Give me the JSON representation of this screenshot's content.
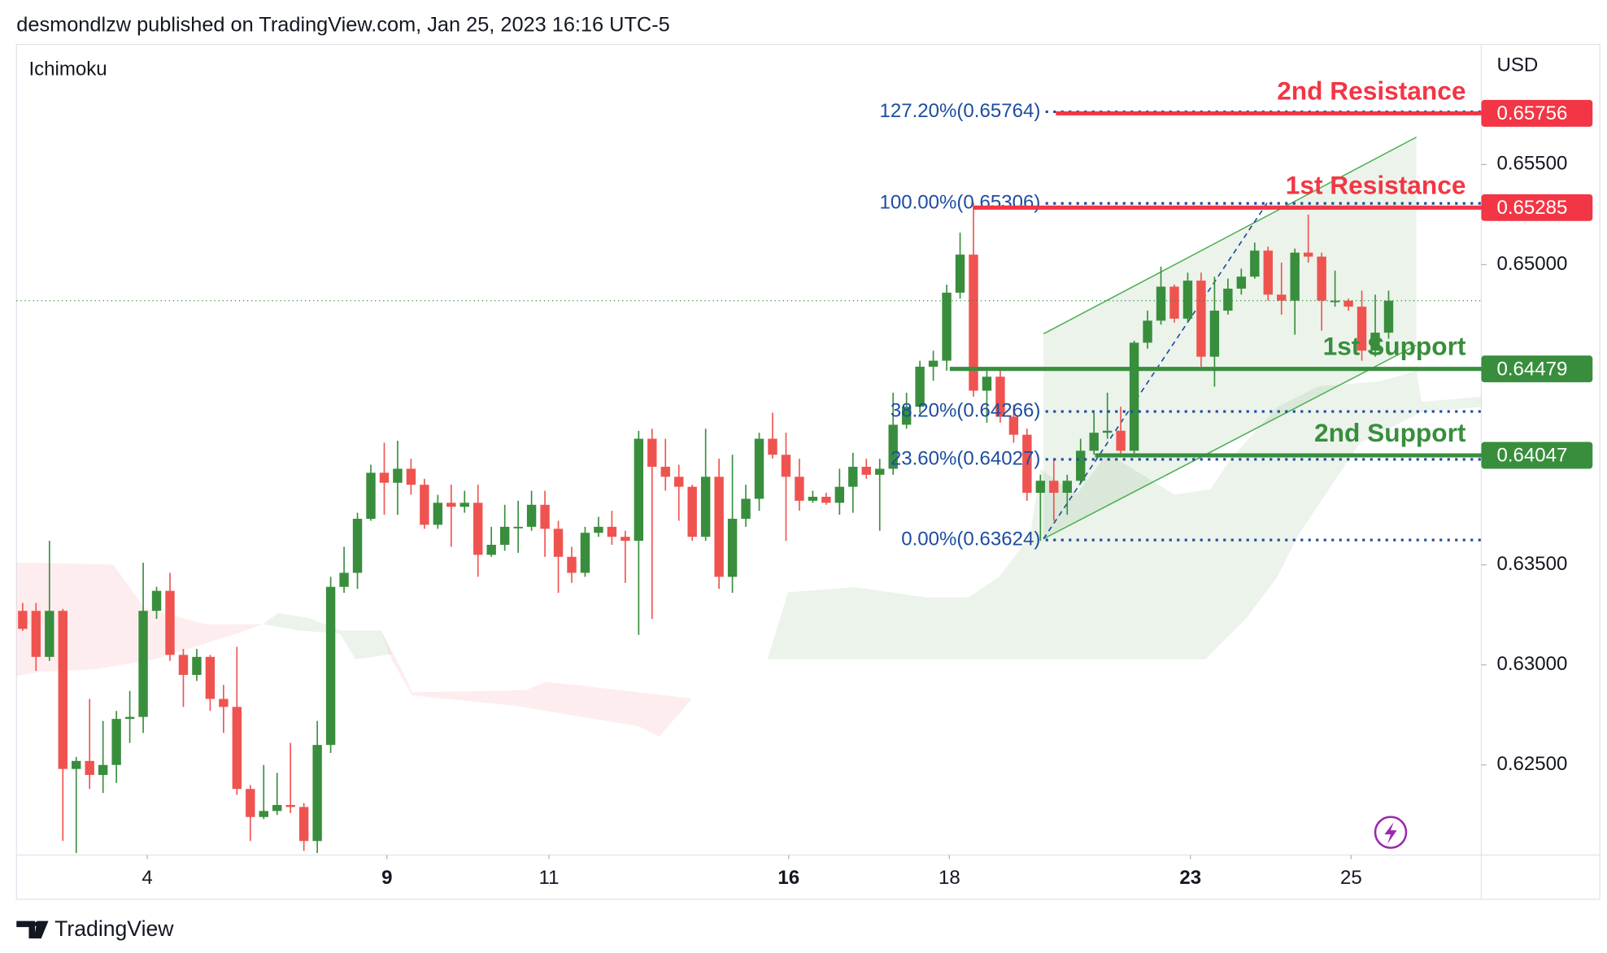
{
  "header": "desmondlzw published on TradingView.com, Jan 25, 2023 16:16 UTC-5",
  "brand": "TradingView",
  "chart_data": {
    "type": "candlestick",
    "indicator": "Ichimoku",
    "y_axis_label": "USD",
    "up_color": "#388e3c",
    "down_color": "#ef5350",
    "ylim": [
      0.6205,
      0.6609
    ],
    "yticks": [
      {
        "value": 0.625,
        "label": "0.62500"
      },
      {
        "value": 0.63,
        "label": "0.63000"
      },
      {
        "value": 0.635,
        "label": "0.63500"
      },
      {
        "value": 0.65,
        "label": "0.65000"
      },
      {
        "value": 0.655,
        "label": "0.65500"
      }
    ],
    "xticks": [
      {
        "value": 9.3,
        "label": "4"
      },
      {
        "value": 27.2,
        "label": "9"
      },
      {
        "value": 39.3,
        "label": "11"
      },
      {
        "value": 57.2,
        "label": "16"
      },
      {
        "value": 69.2,
        "label": "18"
      },
      {
        "value": 87.2,
        "label": "23"
      },
      {
        "value": 99.2,
        "label": "25"
      }
    ],
    "candles": [
      [
        0.6327,
        0.6331,
        0.6317,
        0.6318
      ],
      [
        0.6327,
        0.6331,
        0.6297,
        0.6304
      ],
      [
        0.6304,
        0.6362,
        0.6302,
        0.6327
      ],
      [
        0.6327,
        0.6328,
        0.6212,
        0.6248
      ],
      [
        0.6248,
        0.6254,
        0.6206,
        0.6252
      ],
      [
        0.6252,
        0.6283,
        0.6238,
        0.6245
      ],
      [
        0.6245,
        0.6272,
        0.6236,
        0.625
      ],
      [
        0.625,
        0.6277,
        0.6241,
        0.6273
      ],
      [
        0.6273,
        0.6287,
        0.6261,
        0.6274
      ],
      [
        0.6274,
        0.6351,
        0.6266,
        0.6327
      ],
      [
        0.6327,
        0.6339,
        0.6323,
        0.6337
      ],
      [
        0.6337,
        0.6346,
        0.6302,
        0.6305
      ],
      [
        0.6305,
        0.6308,
        0.6279,
        0.6295
      ],
      [
        0.6295,
        0.6308,
        0.6292,
        0.6304
      ],
      [
        0.6304,
        0.6305,
        0.6277,
        0.6283
      ],
      [
        0.6283,
        0.629,
        0.6266,
        0.6279
      ],
      [
        0.6279,
        0.6309,
        0.6235,
        0.6238
      ],
      [
        0.6238,
        0.624,
        0.6212,
        0.6224
      ],
      [
        0.6224,
        0.625,
        0.6223,
        0.6227
      ],
      [
        0.6227,
        0.6246,
        0.6225,
        0.623
      ],
      [
        0.623,
        0.6261,
        0.6226,
        0.6229
      ],
      [
        0.6229,
        0.6231,
        0.6207,
        0.6212
      ],
      [
        0.6212,
        0.6272,
        0.6206,
        0.626
      ],
      [
        0.626,
        0.6344,
        0.6256,
        0.6339
      ],
      [
        0.6339,
        0.6359,
        0.6336,
        0.6346
      ],
      [
        0.6346,
        0.6376,
        0.6338,
        0.6373
      ],
      [
        0.6373,
        0.64,
        0.6372,
        0.6396
      ],
      [
        0.6396,
        0.6411,
        0.6375,
        0.6391
      ],
      [
        0.6391,
        0.6412,
        0.6375,
        0.6398
      ],
      [
        0.6398,
        0.6403,
        0.6385,
        0.639
      ],
      [
        0.639,
        0.6393,
        0.6368,
        0.637
      ],
      [
        0.637,
        0.6385,
        0.6368,
        0.6381
      ],
      [
        0.6381,
        0.639,
        0.6359,
        0.6379
      ],
      [
        0.6379,
        0.6387,
        0.6376,
        0.6381
      ],
      [
        0.6381,
        0.639,
        0.6344,
        0.6355
      ],
      [
        0.6355,
        0.6369,
        0.6354,
        0.636
      ],
      [
        0.636,
        0.638,
        0.6357,
        0.6369
      ],
      [
        0.6369,
        0.6382,
        0.6356,
        0.6369
      ],
      [
        0.6369,
        0.6387,
        0.6367,
        0.638
      ],
      [
        0.638,
        0.6387,
        0.6354,
        0.6368
      ],
      [
        0.6368,
        0.6372,
        0.6336,
        0.6354
      ],
      [
        0.6354,
        0.6359,
        0.6341,
        0.6346
      ],
      [
        0.6346,
        0.6369,
        0.6344,
        0.6366
      ],
      [
        0.6366,
        0.6374,
        0.6364,
        0.6369
      ],
      [
        0.6369,
        0.6377,
        0.636,
        0.6364
      ],
      [
        0.6364,
        0.6367,
        0.6341,
        0.6362
      ],
      [
        0.6362,
        0.6417,
        0.6315,
        0.6413
      ],
      [
        0.6413,
        0.6418,
        0.6323,
        0.6399
      ],
      [
        0.6399,
        0.6413,
        0.6387,
        0.6394
      ],
      [
        0.6394,
        0.64,
        0.6372,
        0.6389
      ],
      [
        0.6389,
        0.639,
        0.6362,
        0.6364
      ],
      [
        0.6364,
        0.6418,
        0.6362,
        0.6394
      ],
      [
        0.6394,
        0.6403,
        0.6338,
        0.6344
      ],
      [
        0.6344,
        0.6405,
        0.6336,
        0.6373
      ],
      [
        0.6373,
        0.639,
        0.6369,
        0.6383
      ],
      [
        0.6383,
        0.6416,
        0.6377,
        0.6413
      ],
      [
        0.6413,
        0.6426,
        0.6403,
        0.6405
      ],
      [
        0.6405,
        0.6416,
        0.6362,
        0.6394
      ],
      [
        0.6394,
        0.6403,
        0.6377,
        0.6382
      ],
      [
        0.6382,
        0.6387,
        0.6381,
        0.6384
      ],
      [
        0.6384,
        0.6386,
        0.638,
        0.6381
      ],
      [
        0.6381,
        0.6398,
        0.6375,
        0.6389
      ],
      [
        0.6389,
        0.6406,
        0.6376,
        0.6399
      ],
      [
        0.6399,
        0.6403,
        0.6393,
        0.6395
      ],
      [
        0.6395,
        0.6403,
        0.6367,
        0.6398
      ],
      [
        0.6398,
        0.6436,
        0.6395,
        0.642
      ],
      [
        0.642,
        0.6436,
        0.6418,
        0.6429
      ],
      [
        0.6429,
        0.6452,
        0.6426,
        0.6449
      ],
      [
        0.6449,
        0.6457,
        0.6442,
        0.6452
      ],
      [
        0.6452,
        0.649,
        0.6447,
        0.6486
      ],
      [
        0.6486,
        0.6516,
        0.6483,
        0.6505
      ],
      [
        0.6505,
        0.6531,
        0.6434,
        0.6437
      ],
      [
        0.6437,
        0.6447,
        0.6421,
        0.6444
      ],
      [
        0.6444,
        0.6447,
        0.6421,
        0.6424
      ],
      [
        0.6424,
        0.643,
        0.6411,
        0.6415
      ],
      [
        0.6415,
        0.6418,
        0.6382,
        0.6386
      ],
      [
        0.6386,
        0.6395,
        0.6362,
        0.6392
      ],
      [
        0.6392,
        0.6403,
        0.6372,
        0.6386
      ],
      [
        0.6386,
        0.6395,
        0.6375,
        0.6392
      ],
      [
        0.6392,
        0.6413,
        0.6391,
        0.6407
      ],
      [
        0.6407,
        0.6426,
        0.6405,
        0.6416
      ],
      [
        0.6416,
        0.6436,
        0.6413,
        0.6417
      ],
      [
        0.6417,
        0.6429,
        0.6405,
        0.6407
      ],
      [
        0.6407,
        0.6462,
        0.6405,
        0.6461
      ],
      [
        0.6461,
        0.6477,
        0.6458,
        0.6472
      ],
      [
        0.6472,
        0.6499,
        0.647,
        0.6489
      ],
      [
        0.6489,
        0.649,
        0.6471,
        0.6473
      ],
      [
        0.6473,
        0.6496,
        0.6471,
        0.6492
      ],
      [
        0.6492,
        0.6496,
        0.6449,
        0.6454
      ],
      [
        0.6454,
        0.6494,
        0.6439,
        0.6477
      ],
      [
        0.6477,
        0.6493,
        0.6475,
        0.6488
      ],
      [
        0.6488,
        0.6498,
        0.6485,
        0.6494
      ],
      [
        0.6494,
        0.6511,
        0.6493,
        0.6507
      ],
      [
        0.6507,
        0.6509,
        0.6482,
        0.6485
      ],
      [
        0.6485,
        0.6501,
        0.6475,
        0.6482
      ],
      [
        0.6482,
        0.6508,
        0.6465,
        0.6506
      ],
      [
        0.6506,
        0.6525,
        0.6501,
        0.6504
      ],
      [
        0.6504,
        0.6506,
        0.6467,
        0.6482
      ],
      [
        0.6482,
        0.6497,
        0.6479,
        0.6482
      ],
      [
        0.6482,
        0.6483,
        0.6477,
        0.6479
      ],
      [
        0.6479,
        0.6487,
        0.6452,
        0.6457
      ],
      [
        0.6457,
        0.6485,
        0.6454,
        0.6466
      ],
      [
        0.6466,
        0.6487,
        0.6463,
        0.6482
      ]
    ],
    "fib_color": "#1e4da0",
    "fib_levels": [
      {
        "value": 0.65764,
        "label": "127.20%(0.65764)"
      },
      {
        "value": 0.65306,
        "label": "100.00%(0.65306)"
      },
      {
        "value": 0.64266,
        "label": "38.20%(0.64266)"
      },
      {
        "value": 0.64027,
        "label": "23.60%(0.64027)"
      },
      {
        "value": 0.63624,
        "label": "0.00%(0.63624)"
      }
    ],
    "levels": [
      {
        "name": "2nd Resistance",
        "value": 0.65756,
        "color": "#f23645"
      },
      {
        "name": "1st Resistance",
        "value": 0.65285,
        "color": "#f23645"
      },
      {
        "name": "1st Support",
        "value": 0.64479,
        "color": "#388e3c"
      },
      {
        "name": "2nd Support",
        "value": 0.64047,
        "color": "#388e3c"
      }
    ]
  }
}
